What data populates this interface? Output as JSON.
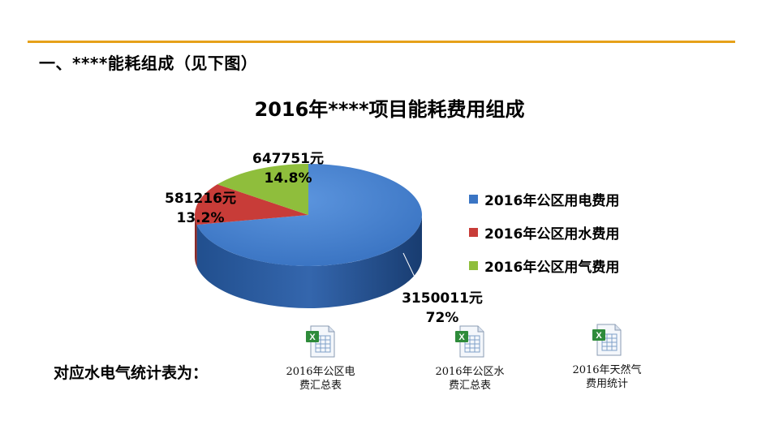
{
  "heading": "一、****能耗组成（见下图）",
  "chart_data": {
    "type": "pie",
    "title": "2016年****项目能耗费用组成",
    "slices": [
      {
        "name": "2016年公区用电费用",
        "value": 3150011,
        "value_label": "3150011元",
        "percent_label": "72%",
        "color": "#3a75c4"
      },
      {
        "name": "2016年公区用水费用",
        "value": 581216,
        "value_label": "581216元",
        "percent_label": "13.2%",
        "color": "#c83c38"
      },
      {
        "name": "2016年公区用气费用",
        "value": 647751,
        "value_label": "647751元",
        "percent_label": "14.8%",
        "color": "#8fbe3c"
      }
    ],
    "legend_position": "right"
  },
  "footer": {
    "label": "对应水电气统计表为：",
    "files": [
      {
        "name": "2016年公区电费汇总表",
        "icon": "excel-file-icon"
      },
      {
        "name": "2016年公区水费汇总表",
        "icon": "excel-file-icon"
      },
      {
        "name": "2016年天然气费用统计",
        "icon": "excel-file-icon"
      }
    ]
  }
}
